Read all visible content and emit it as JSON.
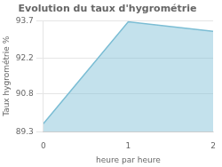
{
  "chart_data": {
    "type": "area",
    "title": "Evolution du taux d'hygrométrie",
    "xlabel": "heure par heure",
    "ylabel": "Taux hygrométrie %",
    "x": [
      0,
      1,
      2
    ],
    "values": [
      89.62,
      93.65,
      93.28
    ],
    "color": "#7bbdd4",
    "xlim": [
      0,
      2
    ],
    "xticks": [
      0,
      1,
      2
    ],
    "ylim": [
      89.3,
      93.7
    ],
    "yticks": [
      89.3,
      90.8,
      92.2,
      93.7
    ],
    "grid": "y"
  }
}
